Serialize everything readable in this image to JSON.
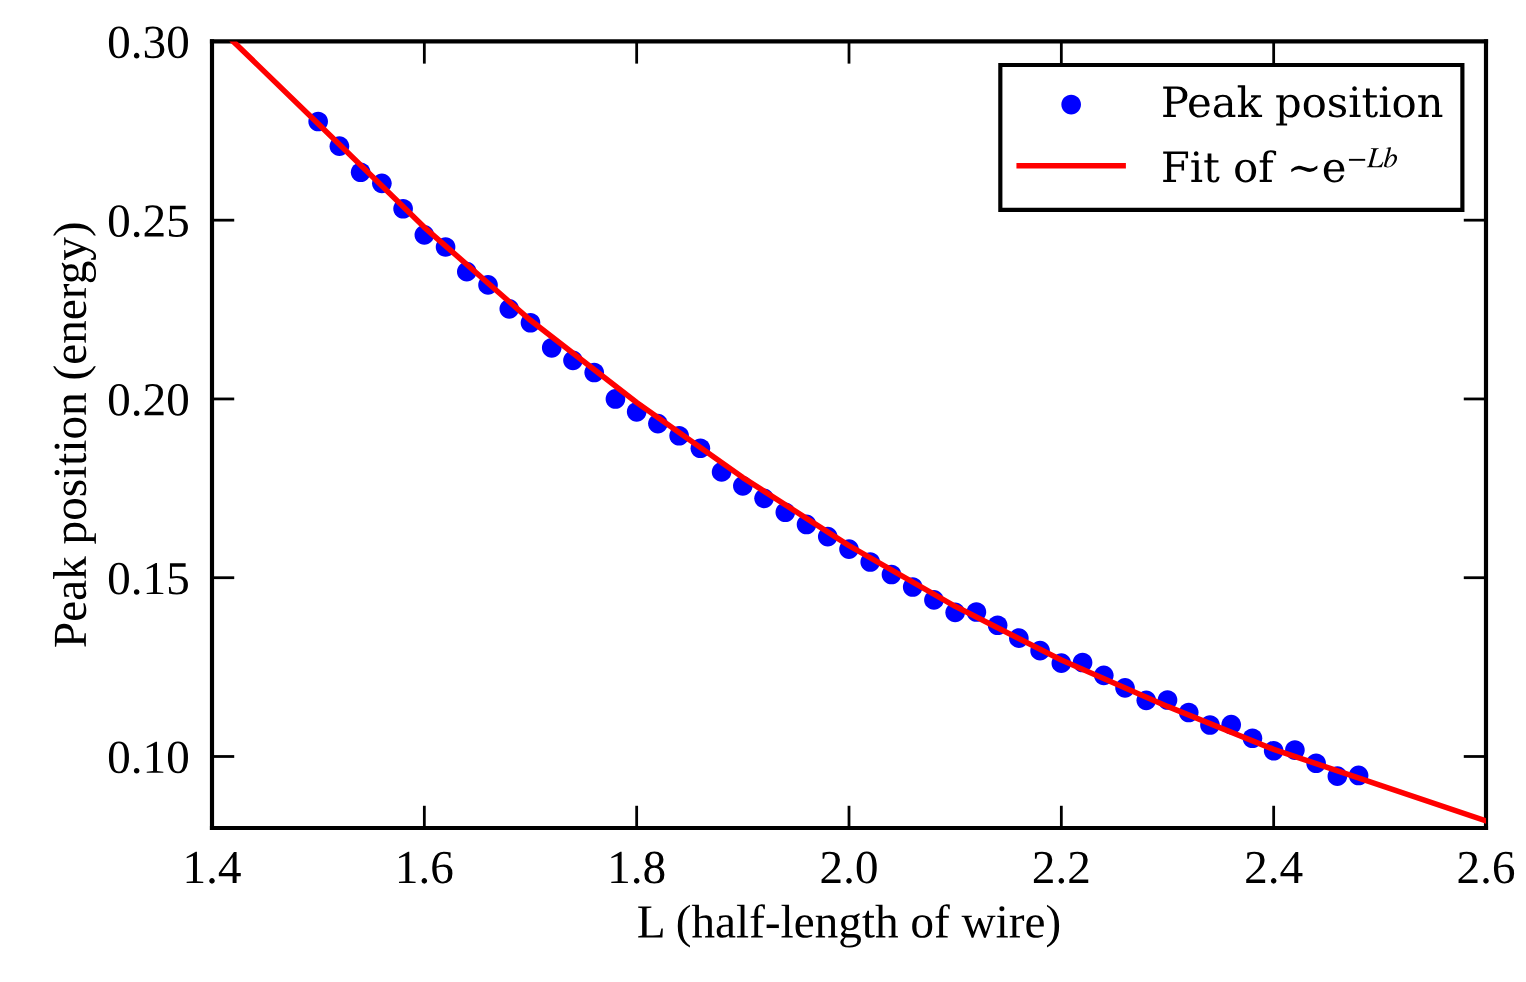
{
  "chart_data": {
    "type": "scatter",
    "xlabel": "L (half-length of wire)",
    "ylabel": "Peak position (energy)",
    "xlim": [
      1.4,
      2.6
    ],
    "xticks": [
      1.4,
      1.6,
      1.8,
      {
        "value": 2.0,
        "label": "2.0"
      },
      2.2,
      2.4,
      2.6
    ],
    "ylim": [
      0.08,
      0.3
    ],
    "yticks": [
      {
        "value": 0.1,
        "label": "0.10"
      },
      0.15,
      {
        "value": 0.2,
        "label": "0.20"
      },
      0.25,
      {
        "value": 0.3,
        "label": "0.30"
      }
    ],
    "grid": false,
    "legend": "top right",
    "series": [
      {
        "name": "Peak position",
        "marker": "circle",
        "color": "#0000ff",
        "x": [
          1.5,
          1.52,
          1.54,
          1.56,
          1.58,
          1.6,
          1.62,
          1.64,
          1.66,
          1.68,
          1.7,
          1.72,
          1.74,
          1.76,
          1.78,
          1.8,
          1.82,
          1.84,
          1.86,
          1.88,
          1.9,
          1.92,
          1.94,
          1.96,
          1.98,
          2.0,
          2.02,
          2.04,
          2.06,
          2.08,
          2.1,
          2.12,
          2.14,
          2.16,
          2.18,
          2.2,
          2.22,
          2.24,
          2.26,
          2.28,
          2.3,
          2.32,
          2.34,
          2.36,
          2.38,
          2.4,
          2.42,
          2.44,
          2.46,
          2.48
        ],
        "values": [
          0.2776,
          0.2707,
          0.2634,
          0.2603,
          0.2532,
          0.2459,
          0.2425,
          0.2356,
          0.2319,
          0.2252,
          0.2213,
          0.2143,
          0.2108,
          0.2074,
          0.2,
          0.1964,
          0.1931,
          0.1897,
          0.1862,
          0.1796,
          0.1757,
          0.1722,
          0.1683,
          0.1649,
          0.1615,
          0.158,
          0.1544,
          0.1509,
          0.1474,
          0.1438,
          0.1403,
          0.1404,
          0.1367,
          0.1331,
          0.1296,
          0.1261,
          0.1263,
          0.1227,
          0.1192,
          0.1157,
          0.1158,
          0.1123,
          0.1088,
          0.1089,
          0.1051,
          0.1016,
          0.1018,
          0.0981,
          0.0945,
          0.0947
        ]
      },
      {
        "name": "Fit of ∼e$^{−Lb}$",
        "type": "line",
        "line_style": "solid",
        "color": "#ff0000",
        "x": [
          1.42,
          1.5,
          1.6,
          1.7,
          1.8,
          1.9,
          2.0,
          2.1,
          2.2,
          2.3,
          2.4,
          2.5,
          2.6
        ],
        "values": [
          0.3,
          0.277,
          0.248,
          0.222,
          0.199,
          0.178,
          0.159,
          0.142,
          0.127,
          0.114,
          0.102,
          0.092,
          0.082
        ]
      }
    ]
  }
}
